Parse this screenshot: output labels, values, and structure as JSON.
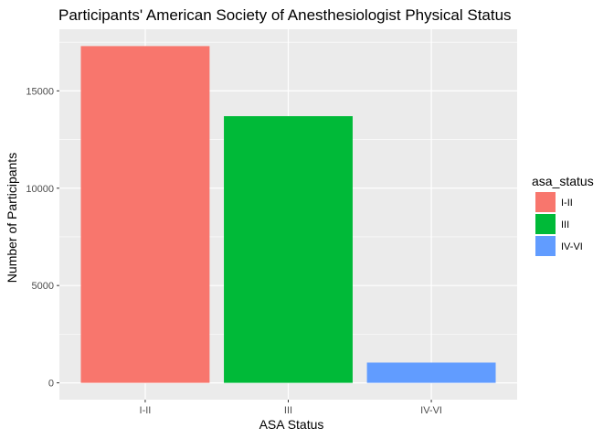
{
  "chart_data": {
    "type": "bar",
    "title": "Participants' American Society of Anesthesiologist Physical Status",
    "xlabel": "ASA Status",
    "ylabel": "Number of Participants",
    "categories": [
      "I-II",
      "III",
      "IV-VI"
    ],
    "values": [
      17300,
      13700,
      1040
    ],
    "colors": [
      "#F8766D",
      "#00BA38",
      "#619CFF"
    ],
    "ylim": [
      0,
      17300
    ],
    "yticks": [
      0,
      5000,
      10000,
      15000
    ],
    "ytick_labels": [
      "0",
      "5000",
      "10000",
      "15000"
    ],
    "grid": true,
    "legend": {
      "title": "asa_status",
      "placement": "right",
      "entries": [
        "I-II",
        "III",
        "IV-VI"
      ]
    },
    "background": "#EBEBEB",
    "gridline_color": "#FFFFFF"
  }
}
